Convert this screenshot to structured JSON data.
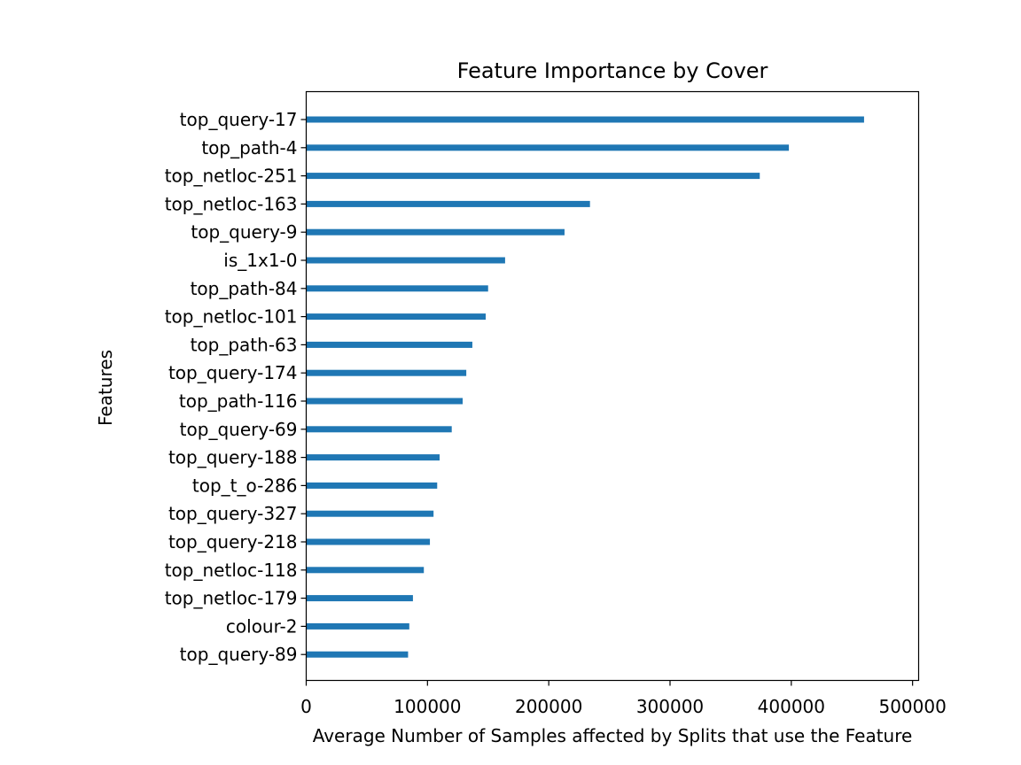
{
  "chart_data": {
    "type": "bar",
    "orientation": "horizontal",
    "title": "Feature Importance by Cover",
    "xlabel": "Average Number of Samples affected by Splits that use the Feature",
    "ylabel": "Features",
    "xlim": [
      0,
      505000
    ],
    "xticks": [
      0,
      100000,
      200000,
      300000,
      400000,
      500000
    ],
    "xtick_labels": [
      "0",
      "100000",
      "200000",
      "300000",
      "400000",
      "500000"
    ],
    "grid": false,
    "bar_color": "#1f77b4",
    "categories": [
      "top_query-17",
      "top_path-4",
      "top_netloc-251",
      "top_netloc-163",
      "top_query-9",
      "is_1x1-0",
      "top_path-84",
      "top_netloc-101",
      "top_path-63",
      "top_query-174",
      "top_path-116",
      "top_query-69",
      "top_query-188",
      "top_t_o-286",
      "top_query-327",
      "top_query-218",
      "top_netloc-118",
      "top_netloc-179",
      "colour-2",
      "top_query-89"
    ],
    "values": [
      460000,
      398000,
      374000,
      234000,
      213000,
      164000,
      150000,
      148000,
      137000,
      132000,
      129000,
      120000,
      110000,
      108000,
      105000,
      102000,
      97000,
      88000,
      85000,
      84000
    ]
  }
}
